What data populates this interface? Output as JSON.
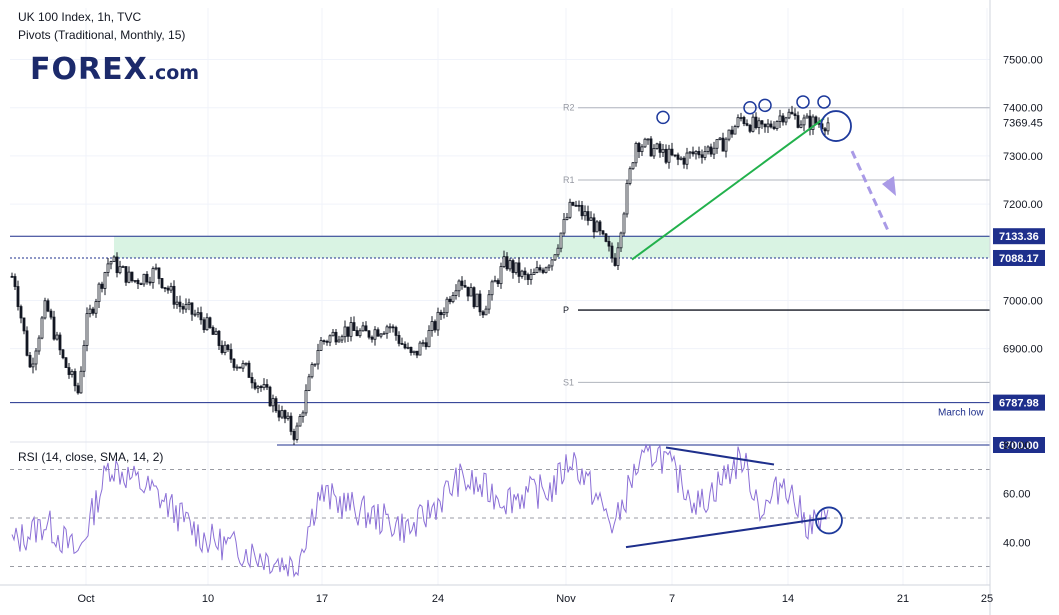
{
  "header": {
    "title": "UK 100 Index, 1h, TVC",
    "subtitle": "Pivots (Traditional, Monthly, 15)"
  },
  "logo": {
    "text": "FOREX",
    "suffix": ".com"
  },
  "colors": {
    "candles": "#131722",
    "hlines": "#1e2f8c",
    "zone": "#d9f3e3",
    "trendline": "#22b14c",
    "circles": "#1e3a9c",
    "forecast_arrow": "#a99ae6",
    "rsi_line": "#8b6fd6",
    "rsi_trendlines": "#1e2f8c",
    "pivot_line": "#b0b4bd",
    "pivot_p_line": "#131722"
  },
  "chart_data": [
    {
      "type": "candlestick",
      "title": "UK 100 Index, 1h, TVC",
      "yaxis_ticks": [
        "7500.00",
        "7400.00",
        "7300.00",
        "7200.00",
        "7000.00",
        "6900.00"
      ],
      "ylim": [
        6640,
        7545
      ],
      "current_price": "7369.45",
      "x_ticks": [
        "Oct",
        "10",
        "17",
        "24",
        "Nov",
        "7",
        "14",
        "21",
        "25"
      ],
      "approx_close_path": [
        {
          "date": "Sep 26",
          "close": 7050
        },
        {
          "date": "Sep 27",
          "close": 6860
        },
        {
          "date": "Sep 28",
          "close": 6990
        },
        {
          "date": "Sep 29",
          "close": 6880
        },
        {
          "date": "Sep 30",
          "close": 6810
        },
        {
          "date": "Oct 3",
          "close": 6950
        },
        {
          "date": "Oct 4",
          "close": 7085
        },
        {
          "date": "Oct 5",
          "close": 7040
        },
        {
          "date": "Oct 6",
          "close": 7060
        },
        {
          "date": "Oct 7",
          "close": 6990
        },
        {
          "date": "Oct 10",
          "close": 6960
        },
        {
          "date": "Oct 11",
          "close": 6890
        },
        {
          "date": "Oct 12",
          "close": 6850
        },
        {
          "date": "Oct 13",
          "close": 6790
        },
        {
          "date": "Oct 14",
          "close": 6720
        },
        {
          "date": "Oct 17",
          "close": 6910
        },
        {
          "date": "Oct 18",
          "close": 6940
        },
        {
          "date": "Oct 19",
          "close": 6930
        },
        {
          "date": "Oct 20",
          "close": 6950
        },
        {
          "date": "Oct 21",
          "close": 6880
        },
        {
          "date": "Oct 24",
          "close": 6950
        },
        {
          "date": "Oct 25",
          "close": 7050
        },
        {
          "date": "Oct 26",
          "close": 6980
        },
        {
          "date": "Oct 27",
          "close": 7080
        },
        {
          "date": "Oct 28",
          "close": 7040
        },
        {
          "date": "Oct 31",
          "close": 7090
        },
        {
          "date": "Nov 1",
          "close": 7200
        },
        {
          "date": "Nov 2",
          "close": 7160
        },
        {
          "date": "Nov 3",
          "close": 7080
        },
        {
          "date": "Nov 4",
          "close": 7330
        },
        {
          "date": "Nov 7",
          "close": 7310
        },
        {
          "date": "Nov 8",
          "close": 7290
        },
        {
          "date": "Nov 9",
          "close": 7310
        },
        {
          "date": "Nov 10",
          "close": 7320
        },
        {
          "date": "Nov 11",
          "close": 7380
        },
        {
          "date": "Nov 14",
          "close": 7350
        },
        {
          "date": "Nov 15",
          "close": 7390
        },
        {
          "date": "Nov 16",
          "close": 7369
        }
      ],
      "levels": [
        {
          "label": "7133.36",
          "value": 7133.36
        },
        {
          "label": "7088.17",
          "value": 7088.17
        },
        {
          "label": "6787.98",
          "value": 6787.98,
          "note": "March low"
        },
        {
          "label": "6700.00",
          "value": 6700.0
        }
      ],
      "pivots": [
        {
          "label": "R2",
          "value": 7400
        },
        {
          "label": "R1",
          "value": 7250
        },
        {
          "label": "P",
          "value": 6980
        },
        {
          "label": "S1",
          "value": 6830
        }
      ],
      "zone": [
        7088.17,
        7133.36
      ],
      "grid": true
    },
    {
      "type": "line",
      "title": "RSI (14, close, SMA, 14, 2)",
      "yaxis_ticks": [
        "80.00",
        "60.00",
        "40.00"
      ],
      "ylim": [
        20,
        85
      ],
      "bands": [
        70,
        50,
        30
      ],
      "approx_values": [
        {
          "date": "Sep 26",
          "value": 40
        },
        {
          "date": "Sep 28",
          "value": 48
        },
        {
          "date": "Sep 30",
          "value": 35
        },
        {
          "date": "Oct 4",
          "value": 72
        },
        {
          "date": "Oct 6",
          "value": 60
        },
        {
          "date": "Oct 10",
          "value": 42
        },
        {
          "date": "Oct 13",
          "value": 33
        },
        {
          "date": "Oct 14",
          "value": 30
        },
        {
          "date": "Oct 17",
          "value": 60
        },
        {
          "date": "Oct 19",
          "value": 52
        },
        {
          "date": "Oct 21",
          "value": 45
        },
        {
          "date": "Oct 25",
          "value": 66
        },
        {
          "date": "Oct 27",
          "value": 58
        },
        {
          "date": "Oct 31",
          "value": 62
        },
        {
          "date": "Nov 1",
          "value": 75
        },
        {
          "date": "Nov 3",
          "value": 46
        },
        {
          "date": "Nov 4",
          "value": 70
        },
        {
          "date": "Nov 7",
          "value": 78
        },
        {
          "date": "Nov 9",
          "value": 55
        },
        {
          "date": "Nov 11",
          "value": 75
        },
        {
          "date": "Nov 14",
          "value": 52
        },
        {
          "date": "Nov 15",
          "value": 66
        },
        {
          "date": "Nov 16",
          "value": 48
        }
      ]
    }
  ]
}
